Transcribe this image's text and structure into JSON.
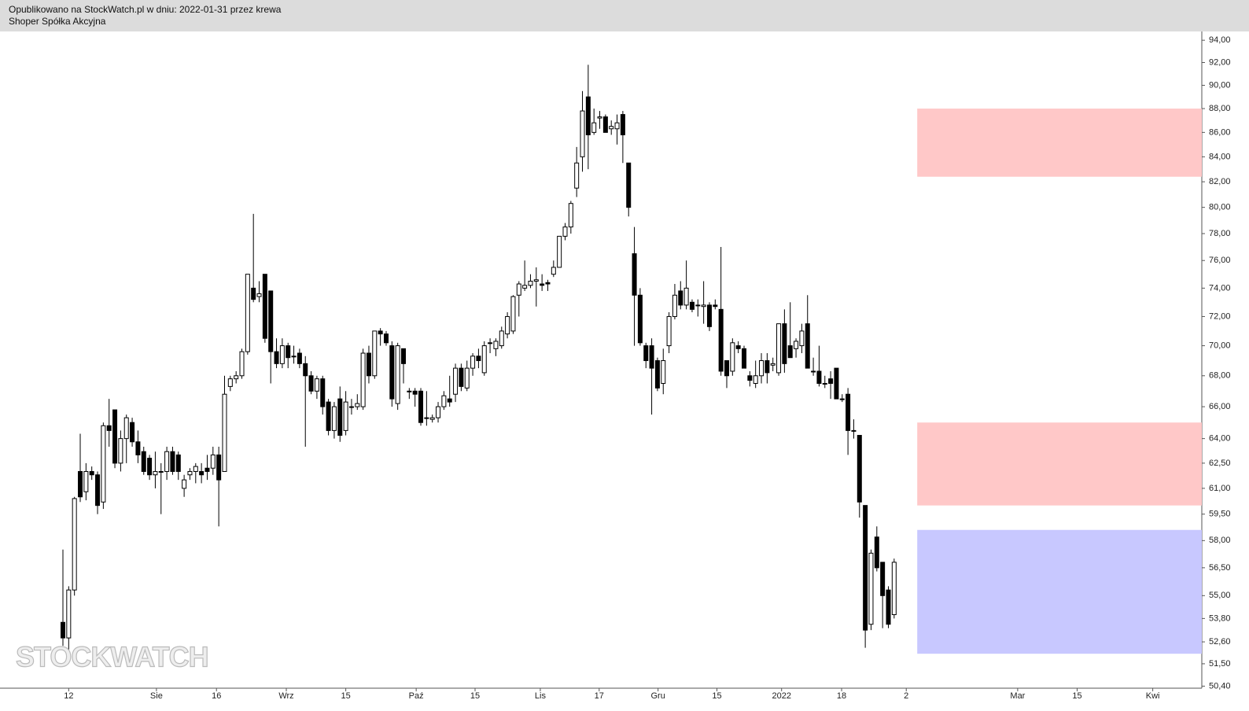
{
  "header": {
    "line1": "Opublikowano na StockWatch.pl w dniu: 2022-01-31 przez krewa",
    "line2": "Shoper Spółka Akcyjna"
  },
  "watermark": "STOCKWATCH",
  "chart_data": {
    "type": "candlestick",
    "log_scale": true,
    "up_color": "#ffffff",
    "down_color": "#000000",
    "ylim": [
      94.8,
      50.3
    ],
    "yticks": [
      {
        "value": 94,
        "label": "94,00"
      },
      {
        "value": 92,
        "label": "92,00"
      },
      {
        "value": 90,
        "label": "90,00"
      },
      {
        "value": 88,
        "label": "88,00"
      },
      {
        "value": 86,
        "label": "86,00"
      },
      {
        "value": 84,
        "label": "84,00"
      },
      {
        "value": 82,
        "label": "82,00"
      },
      {
        "value": 80,
        "label": "80,00"
      },
      {
        "value": 78,
        "label": "78,00"
      },
      {
        "value": 76,
        "label": "76,00"
      },
      {
        "value": 74,
        "label": "74,00"
      },
      {
        "value": 72,
        "label": "72,00"
      },
      {
        "value": 70,
        "label": "70,00"
      },
      {
        "value": 68,
        "label": "68,00"
      },
      {
        "value": 66,
        "label": "66,00"
      },
      {
        "value": 64,
        "label": "64,00"
      },
      {
        "value": 62.5,
        "label": "62,50"
      },
      {
        "value": 61,
        "label": "61,00"
      },
      {
        "value": 59.5,
        "label": "59,50"
      },
      {
        "value": 58,
        "label": "58,00"
      },
      {
        "value": 56.5,
        "label": "56,50"
      },
      {
        "value": 55,
        "label": "55,00"
      },
      {
        "value": 53.8,
        "label": "53,80"
      },
      {
        "value": 52.6,
        "label": "52,60"
      },
      {
        "value": 51.5,
        "label": "51,50"
      },
      {
        "value": 50.4,
        "label": "50,40"
      }
    ],
    "xlim": [
      -10.9,
      197.3
    ],
    "xticks": [
      {
        "value": 1,
        "label": "12"
      },
      {
        "value": 16.2,
        "label": "Sie"
      },
      {
        "value": 26.6,
        "label": "16"
      },
      {
        "value": 38.7,
        "label": "Wrz"
      },
      {
        "value": 49,
        "label": "15"
      },
      {
        "value": 61.2,
        "label": "Paź"
      },
      {
        "value": 71.4,
        "label": "15"
      },
      {
        "value": 82.7,
        "label": "Lis"
      },
      {
        "value": 92.9,
        "label": "17"
      },
      {
        "value": 103.1,
        "label": "Gru"
      },
      {
        "value": 113.3,
        "label": "15"
      },
      {
        "value": 124.5,
        "label": "2022"
      },
      {
        "value": 134.9,
        "label": "18"
      },
      {
        "value": 146.1,
        "label": "2"
      },
      {
        "value": 165.4,
        "label": "Mar"
      },
      {
        "value": 175.7,
        "label": "15"
      },
      {
        "value": 188.8,
        "label": "Kwi"
      }
    ],
    "zones": [
      {
        "x0": 148,
        "top": 88,
        "bottom": 82.4,
        "color": "#ffc8c8"
      },
      {
        "x0": 148,
        "top": 65,
        "bottom": 60,
        "color": "#ffc8c8"
      },
      {
        "x0": 148,
        "top": 58.6,
        "bottom": 52,
        "color": "#c8c8ff"
      }
    ],
    "ohlc": [
      [
        53.6,
        57.5,
        52.4,
        52.8
      ],
      [
        52.8,
        55.5,
        52.2,
        55.3
      ],
      [
        55.3,
        60.5,
        55.0,
        60.4
      ],
      [
        62.0,
        64.3,
        60.2,
        60.5
      ],
      [
        60.8,
        62.5,
        60.3,
        62.0
      ],
      [
        62.0,
        62.3,
        61.5,
        61.8
      ],
      [
        61.8,
        62.0,
        59.5,
        60.0
      ],
      [
        60.2,
        65.0,
        59.8,
        64.8
      ],
      [
        64.8,
        66.5,
        63.5,
        64.5
      ],
      [
        65.8,
        65.8,
        62.2,
        62.5
      ],
      [
        62.5,
        64.5,
        62.0,
        64.0
      ],
      [
        64.0,
        65.5,
        62.5,
        65.3
      ],
      [
        65.0,
        65.3,
        63.5,
        63.8
      ],
      [
        63.8,
        64.5,
        62.5,
        63.0
      ],
      [
        63.2,
        63.5,
        61.8,
        62.0
      ],
      [
        62.8,
        63.0,
        61.5,
        61.8
      ],
      [
        61.8,
        63.2,
        61.0,
        62.0
      ],
      [
        62.0,
        62.5,
        59.5,
        62.0
      ],
      [
        62.0,
        63.5,
        61.5,
        63.2
      ],
      [
        63.2,
        63.5,
        61.8,
        62.0
      ],
      [
        63.0,
        63.2,
        61.5,
        62.0
      ],
      [
        61.0,
        61.8,
        60.5,
        61.5
      ],
      [
        61.8,
        62.2,
        61.5,
        62.0
      ],
      [
        62.0,
        62.5,
        61.3,
        62.3
      ],
      [
        62.0,
        62.5,
        61.3,
        61.8
      ],
      [
        62.2,
        63.0,
        61.5,
        62.0
      ],
      [
        62.2,
        63.5,
        61.8,
        63.0
      ],
      [
        63.0,
        63.5,
        58.8,
        61.5
      ],
      [
        62.0,
        68.0,
        62.0,
        66.8
      ],
      [
        67.3,
        68.0,
        67.0,
        67.8
      ],
      [
        67.8,
        68.3,
        67.5,
        68.0
      ],
      [
        68.0,
        69.8,
        67.8,
        69.6
      ],
      [
        69.6,
        75.0,
        69.4,
        75.0
      ],
      [
        74.0,
        79.5,
        73.0,
        73.2
      ],
      [
        73.4,
        74.5,
        73.0,
        73.6
      ],
      [
        75.0,
        75.0,
        70.2,
        70.5
      ],
      [
        73.8,
        73.8,
        67.5,
        69.6
      ],
      [
        69.6,
        70.5,
        68.5,
        68.8
      ],
      [
        68.8,
        70.5,
        68.5,
        70.0
      ],
      [
        70.0,
        70.2,
        68.5,
        69.2
      ],
      [
        69.3,
        70.0,
        68.8,
        69.3
      ],
      [
        69.5,
        69.8,
        68.5,
        68.8
      ],
      [
        68.8,
        69.3,
        63.5,
        68.0
      ],
      [
        68.0,
        68.3,
        66.8,
        67.0
      ],
      [
        67.0,
        68.0,
        66.5,
        67.8
      ],
      [
        67.8,
        68.0,
        65.5,
        66.0
      ],
      [
        66.3,
        66.5,
        64.2,
        64.5
      ],
      [
        64.5,
        66.3,
        64.0,
        66.0
      ],
      [
        66.5,
        67.3,
        63.8,
        64.2
      ],
      [
        64.5,
        67.0,
        64.2,
        66.3
      ],
      [
        66.0,
        66.5,
        65.5,
        66.0
      ],
      [
        66.0,
        66.8,
        65.8,
        66.2
      ],
      [
        66.0,
        69.8,
        65.8,
        69.5
      ],
      [
        69.5,
        70.0,
        67.5,
        68.0
      ],
      [
        68.0,
        71.0,
        67.8,
        71.0
      ],
      [
        71.0,
        71.2,
        70.0,
        70.8
      ],
      [
        70.8,
        71.0,
        70.0,
        70.2
      ],
      [
        70.0,
        70.3,
        66.0,
        66.5
      ],
      [
        66.2,
        70.2,
        65.8,
        70.0
      ],
      [
        69.8,
        69.8,
        67.5,
        68.8
      ],
      [
        67.0,
        67.2,
        66.5,
        67.0
      ],
      [
        67.0,
        67.2,
        66.0,
        66.8
      ],
      [
        67.0,
        67.2,
        64.8,
        65.0
      ],
      [
        65.3,
        67.0,
        64.8,
        65.3
      ],
      [
        65.2,
        65.5,
        65.0,
        65.3
      ],
      [
        65.3,
        66.3,
        65.0,
        66.0
      ],
      [
        66.0,
        67.0,
        65.8,
        66.7
      ],
      [
        66.5,
        68.0,
        66.0,
        66.3
      ],
      [
        66.8,
        68.8,
        66.3,
        68.5
      ],
      [
        68.5,
        68.8,
        67.0,
        67.3
      ],
      [
        67.2,
        69.0,
        67.0,
        68.5
      ],
      [
        68.5,
        69.5,
        68.0,
        69.3
      ],
      [
        69.3,
        69.8,
        68.5,
        69.0
      ],
      [
        68.2,
        70.3,
        68.0,
        70.0
      ],
      [
        70.2,
        70.5,
        69.5,
        70.2
      ],
      [
        69.8,
        70.5,
        69.3,
        70.3
      ],
      [
        70.0,
        71.3,
        69.8,
        71.0
      ],
      [
        70.8,
        72.3,
        70.5,
        72.0
      ],
      [
        71.0,
        73.5,
        70.8,
        73.4
      ],
      [
        73.5,
        74.5,
        72.0,
        74.3
      ],
      [
        74.0,
        76.0,
        73.8,
        74.2
      ],
      [
        74.2,
        75.0,
        74.0,
        74.5
      ],
      [
        74.5,
        75.5,
        72.7,
        74.6
      ],
      [
        74.3,
        75.0,
        73.8,
        74.2
      ],
      [
        74.4,
        74.6,
        73.8,
        74.3
      ],
      [
        75.0,
        76.0,
        74.8,
        75.5
      ],
      [
        75.5,
        77.8,
        75.5,
        77.8
      ],
      [
        77.8,
        78.8,
        77.5,
        78.5
      ],
      [
        78.5,
        80.5,
        78.0,
        80.3
      ],
      [
        81.5,
        84.8,
        80.8,
        83.5
      ],
      [
        84.0,
        89.5,
        82.8,
        87.8
      ],
      [
        89.0,
        91.8,
        83.0,
        85.8
      ],
      [
        86.0,
        88.0,
        85.8,
        86.8
      ],
      [
        87.2,
        87.8,
        86.3,
        87.3
      ],
      [
        87.3,
        87.5,
        86.0,
        86.0
      ],
      [
        86.3,
        87.0,
        85.8,
        86.5
      ],
      [
        86.3,
        87.5,
        85.0,
        86.8
      ],
      [
        87.5,
        87.8,
        83.5,
        85.8
      ],
      [
        83.5,
        83.5,
        79.3,
        80.0
      ],
      [
        76.5,
        78.5,
        70.0,
        73.5
      ],
      [
        73.5,
        74.0,
        70.0,
        70.2
      ],
      [
        70.0,
        70.2,
        68.5,
        69.0
      ],
      [
        70.0,
        70.5,
        65.5,
        68.5
      ],
      [
        69.0,
        69.2,
        67.0,
        67.2
      ],
      [
        67.5,
        69.8,
        66.8,
        69.0
      ],
      [
        70.0,
        72.3,
        69.5,
        72.0
      ],
      [
        72.0,
        74.3,
        71.8,
        73.5
      ],
      [
        73.8,
        74.5,
        72.5,
        72.8
      ],
      [
        72.8,
        76.0,
        72.5,
        74.0
      ],
      [
        73.0,
        73.2,
        72.3,
        72.5
      ],
      [
        72.8,
        73.2,
        72.0,
        72.8
      ],
      [
        72.7,
        74.5,
        71.5,
        72.8
      ],
      [
        72.8,
        73.0,
        71.0,
        71.3
      ],
      [
        72.8,
        73.2,
        72.5,
        72.7
      ],
      [
        72.5,
        77.0,
        68.0,
        68.3
      ],
      [
        69.0,
        69.0,
        67.2,
        68.0
      ],
      [
        68.3,
        70.5,
        68.0,
        70.2
      ],
      [
        70.0,
        70.3,
        69.5,
        69.8
      ],
      [
        69.8,
        70.0,
        68.5,
        68.5
      ],
      [
        68.0,
        68.3,
        67.3,
        67.7
      ],
      [
        67.5,
        69.0,
        67.2,
        68.0
      ],
      [
        68.0,
        69.5,
        67.5,
        69.0
      ],
      [
        69.0,
        69.5,
        67.5,
        68.2
      ],
      [
        68.7,
        69.2,
        68.3,
        68.8
      ],
      [
        68.2,
        71.5,
        68.0,
        71.5
      ],
      [
        71.5,
        72.5,
        68.2,
        68.8
      ],
      [
        70.0,
        73.0,
        69.2,
        69.2
      ],
      [
        69.8,
        70.5,
        69.2,
        70.3
      ],
      [
        70.0,
        71.5,
        69.5,
        71.0
      ],
      [
        71.5,
        73.5,
        68.5,
        68.5
      ],
      [
        68.3,
        69.2,
        68.0,
        68.3
      ],
      [
        68.3,
        70.0,
        67.3,
        67.5
      ],
      [
        67.5,
        68.0,
        67.2,
        67.5
      ],
      [
        67.8,
        68.3,
        66.5,
        67.5
      ],
      [
        68.5,
        68.5,
        66.5,
        66.5
      ],
      [
        66.5,
        66.8,
        66.3,
        66.5
      ],
      [
        66.8,
        67.2,
        63.0,
        64.5
      ],
      [
        64.5,
        65.2,
        64.0,
        64.5
      ],
      [
        64.2,
        64.2,
        59.3,
        60.2
      ],
      [
        60.0,
        60.0,
        52.3,
        53.2
      ],
      [
        53.5,
        57.5,
        53.2,
        57.3
      ],
      [
        58.2,
        58.8,
        56.3,
        56.5
      ],
      [
        56.8,
        56.8,
        53.3,
        55.0
      ],
      [
        55.3,
        55.5,
        53.3,
        53.5
      ],
      [
        54.0,
        57.0,
        53.8,
        56.8
      ]
    ]
  }
}
